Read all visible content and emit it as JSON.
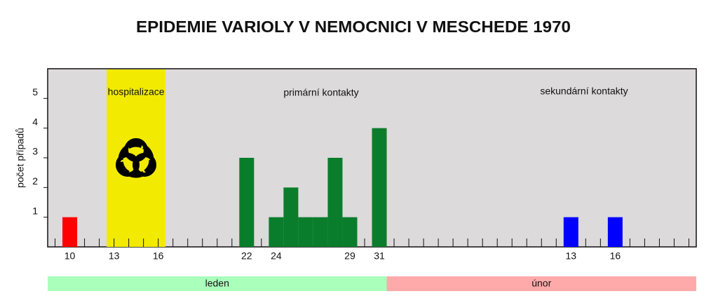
{
  "chart_data": {
    "type": "bar",
    "title": "EPIDEMIE VARIOLY V NEMOCNICI V MESCHEDE 1970",
    "y_label": "počet případů",
    "categories": [
      null,
      "10",
      null,
      null,
      "13",
      null,
      null,
      "16",
      null,
      null,
      null,
      null,
      null,
      "22",
      null,
      "24",
      null,
      null,
      null,
      null,
      "29",
      null,
      "31",
      null,
      null,
      null,
      null,
      null,
      null,
      null,
      null,
      null,
      null,
      null,
      null,
      "13",
      null,
      null,
      "16",
      null,
      null,
      null,
      null,
      null
    ],
    "values": [
      null,
      1,
      null,
      null,
      null,
      null,
      null,
      null,
      null,
      null,
      null,
      null,
      null,
      3,
      null,
      1,
      2,
      1,
      1,
      3,
      1,
      null,
      4,
      null,
      null,
      null,
      null,
      null,
      null,
      null,
      null,
      null,
      null,
      null,
      null,
      1,
      null,
      null,
      1,
      null,
      null,
      null,
      null,
      null
    ],
    "colors": [
      null,
      "#ff0000",
      null,
      null,
      null,
      null,
      null,
      null,
      null,
      null,
      null,
      null,
      null,
      "#0a7d2c",
      null,
      "#0a7d2c",
      "#0a7d2c",
      "#0a7d2c",
      "#0a7d2c",
      "#0a7d2c",
      "#0a7d2c",
      null,
      "#0a7d2c",
      null,
      null,
      null,
      null,
      null,
      null,
      null,
      null,
      null,
      null,
      null,
      null,
      "#0000ff",
      null,
      null,
      "#0000ff",
      null,
      null,
      null,
      null,
      null
    ],
    "ylim": [
      0,
      6
    ],
    "yticks": [
      1,
      2,
      3,
      4,
      5
    ],
    "highlight": {
      "label": "hospitalizace",
      "from": 4,
      "to": 7,
      "color": "#f2ea00"
    },
    "annotations": [
      "primární kontakty",
      "sekundární kontakty"
    ],
    "months": [
      {
        "label": "leden",
        "count": 23,
        "color": "#aaffbb"
      },
      {
        "label": "únor",
        "count": 21,
        "color": "#ffaaaa"
      }
    ]
  }
}
